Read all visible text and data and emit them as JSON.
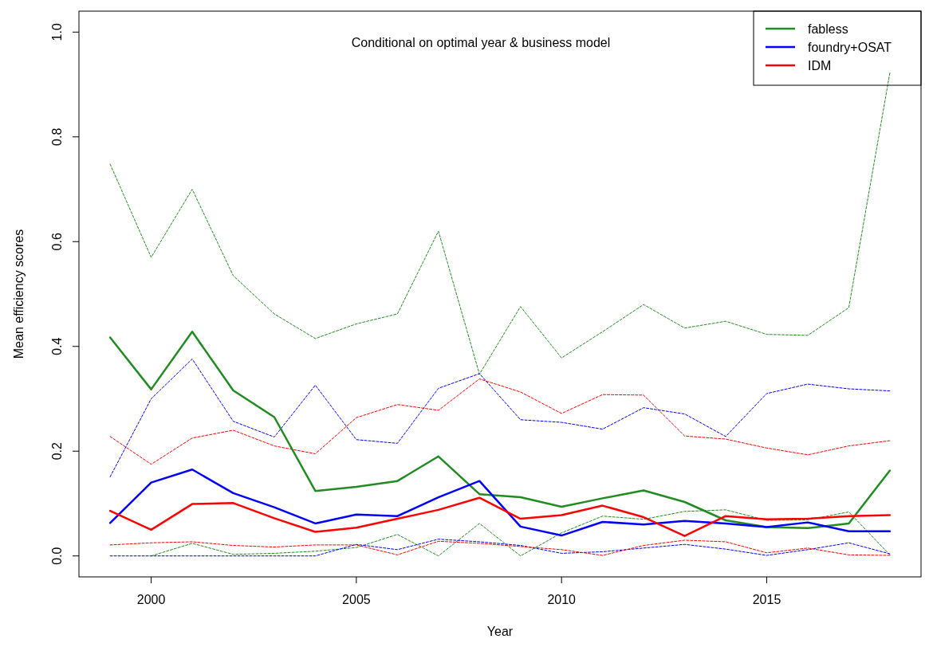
{
  "chart_data": {
    "type": "line",
    "title": "Conditional on optimal year & business model",
    "xlabel": "Year",
    "ylabel": "Mean efficiency scores",
    "x": [
      1999,
      2000,
      2001,
      2002,
      2003,
      2004,
      2005,
      2006,
      2007,
      2008,
      2009,
      2010,
      2011,
      2012,
      2013,
      2014,
      2015,
      2016,
      2017,
      2018
    ],
    "xlim": [
      1998.24,
      2018.76
    ],
    "xticks": [
      2000,
      2005,
      2010,
      2015
    ],
    "ylim": [
      -0.04,
      1.04
    ],
    "yticks": [
      {
        "value": 0,
        "label": "0.0"
      },
      {
        "value": 0.2,
        "label": "0.2"
      },
      {
        "value": 0.4,
        "label": "0.4"
      },
      {
        "value": 0.6,
        "label": "0.6"
      },
      {
        "value": 0.8,
        "label": "0.8"
      },
      {
        "value": 1,
        "label": "1.0"
      }
    ],
    "grid": false,
    "legend": "top right",
    "series": [
      {
        "name": "fabless",
        "color": "#228b22",
        "line_style": "solid",
        "values": [
          0.417,
          0.318,
          0.428,
          0.316,
          0.265,
          0.124,
          0.132,
          0.143,
          0.19,
          0.118,
          0.112,
          0.094,
          0.11,
          0.125,
          0.103,
          0.068,
          0.055,
          0.053,
          0.062,
          0.163
        ]
      },
      {
        "name": "foundry+OSAT",
        "color": "#0000ff",
        "line_style": "solid",
        "values": [
          0.063,
          0.14,
          0.165,
          0.12,
          0.093,
          0.062,
          0.079,
          0.076,
          0.112,
          0.143,
          0.056,
          0.039,
          0.065,
          0.06,
          0.067,
          0.062,
          0.055,
          0.064,
          0.047,
          0.047
        ]
      },
      {
        "name": "IDM",
        "color": "#ff0000",
        "line_style": "solid",
        "values": [
          0.086,
          0.05,
          0.099,
          0.101,
          0.072,
          0.046,
          0.054,
          0.071,
          0.088,
          0.111,
          0.071,
          0.078,
          0.096,
          0.074,
          0.038,
          0.076,
          0.07,
          0.071,
          0.076,
          0.078
        ]
      },
      {
        "color": "#228b22",
        "line_style": "dotted",
        "values": [
          0.748,
          0.57,
          0.7,
          0.535,
          0.462,
          0.415,
          0.443,
          0.462,
          0.62,
          0.347,
          0.476,
          0.378,
          0.428,
          0.48,
          0.435,
          0.448,
          0.423,
          0.421,
          0.474,
          0.922
        ]
      },
      {
        "color": "#228b22",
        "line_style": "dotted",
        "values": [
          null,
          0,
          0.024,
          0.003,
          0.005,
          0.009,
          0.016,
          0.041,
          0,
          0.062,
          0,
          0.044,
          0.076,
          0.07,
          0.085,
          0.088,
          0.068,
          0.069,
          0.084,
          0.002
        ]
      },
      {
        "color": "#0000ff",
        "line_style": "dotted",
        "values": [
          0.151,
          0.3,
          0.376,
          0.257,
          0.227,
          0.326,
          0.222,
          0.215,
          0.32,
          0.348,
          0.26,
          0.255,
          0.242,
          0.283,
          0.271,
          0.228,
          0.31,
          0.328,
          0.319,
          0.315
        ]
      },
      {
        "color": "#0000ff",
        "line_style": "dotted",
        "values": [
          0,
          0,
          0,
          0,
          0,
          0,
          0.022,
          0.012,
          0.032,
          0.027,
          0.02,
          0.005,
          0.008,
          0.015,
          0.022,
          0.013,
          0.001,
          0.012,
          0.025,
          0.004
        ]
      },
      {
        "color": "#ff0000",
        "line_style": "dotted",
        "values": [
          0.228,
          0.175,
          0.225,
          0.24,
          0.21,
          0.195,
          0.264,
          0.289,
          0.278,
          0.338,
          0.313,
          0.272,
          0.308,
          0.307,
          0.229,
          0.223,
          0.206,
          0.193,
          0.21,
          0.22
        ]
      },
      {
        "color": "#ff0000",
        "line_style": "dotted",
        "values": [
          0.021,
          0.025,
          0.027,
          0.02,
          0.017,
          0.021,
          0.021,
          0.002,
          0.028,
          0.024,
          0.018,
          0.012,
          0.001,
          0.02,
          0.03,
          0.027,
          0.006,
          0.015,
          0.002,
          0.001
        ]
      }
    ]
  }
}
